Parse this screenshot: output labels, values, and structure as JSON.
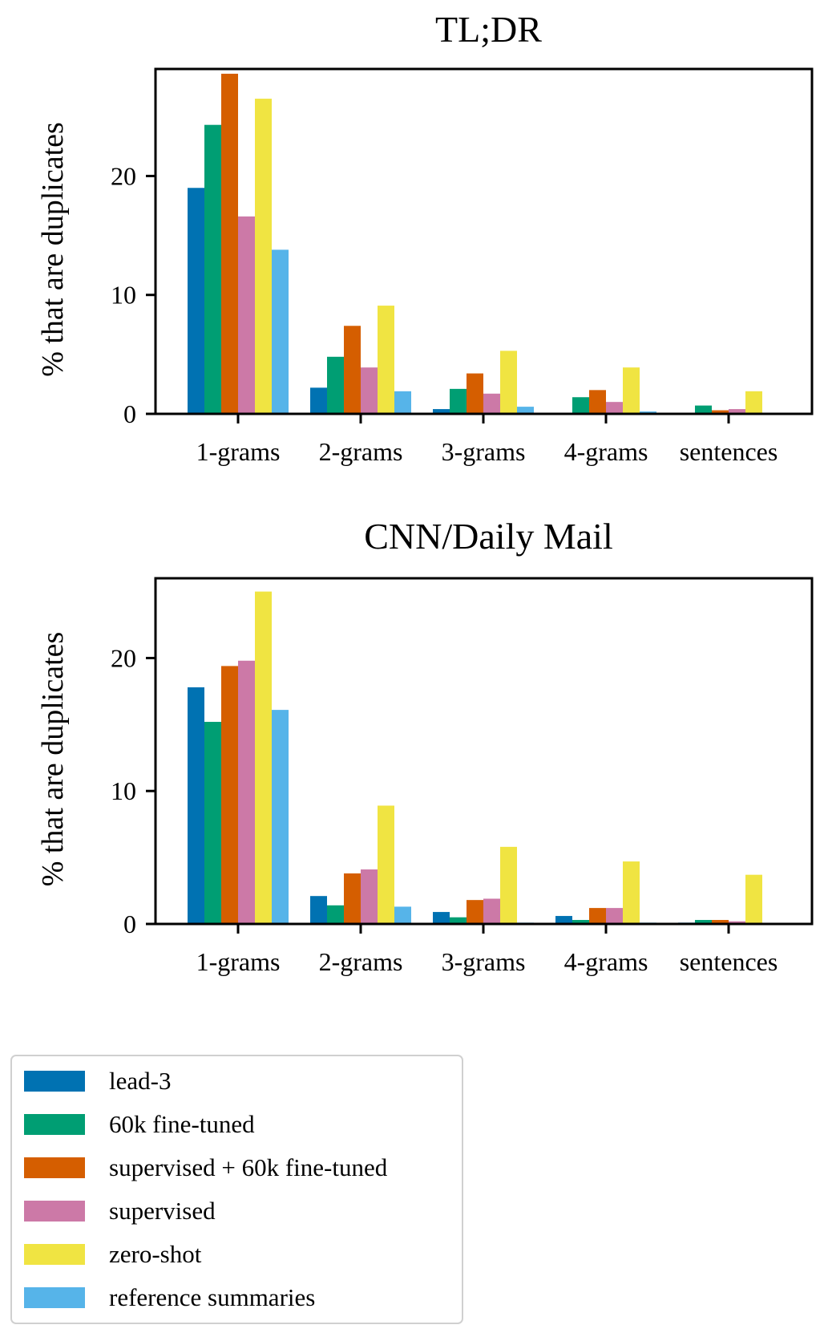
{
  "chart_data": [
    {
      "type": "bar",
      "title": "TL;DR",
      "ylabel": "% that are duplicates",
      "xlabel": "",
      "ylim": [
        0,
        29
      ],
      "yticks": [
        0,
        10,
        20
      ],
      "categories": [
        "1-grams",
        "2-grams",
        "3-grams",
        "4-grams",
        "sentences"
      ],
      "series": [
        {
          "name": "lead-3",
          "values": [
            19.0,
            2.2,
            0.4,
            0.1,
            0.1
          ]
        },
        {
          "name": "60k fine-tuned",
          "values": [
            24.3,
            4.8,
            2.1,
            1.4,
            0.7
          ]
        },
        {
          "name": "supervised + 60k fine-tuned",
          "values": [
            28.6,
            7.4,
            3.4,
            2.0,
            0.3
          ]
        },
        {
          "name": "supervised",
          "values": [
            16.6,
            3.9,
            1.7,
            1.0,
            0.4
          ]
        },
        {
          "name": "zero-shot",
          "values": [
            26.5,
            9.1,
            5.3,
            3.9,
            1.9
          ]
        },
        {
          "name": "reference summaries",
          "values": [
            13.8,
            1.9,
            0.6,
            0.2,
            0.1
          ]
        }
      ],
      "legend": "none",
      "grid": false
    },
    {
      "type": "bar",
      "title": "CNN/Daily Mail",
      "ylabel": "% that are duplicates",
      "xlabel": "",
      "ylim": [
        0,
        26
      ],
      "yticks": [
        0,
        10,
        20
      ],
      "categories": [
        "1-grams",
        "2-grams",
        "3-grams",
        "4-grams",
        "sentences"
      ],
      "series": [
        {
          "name": "lead-3",
          "values": [
            17.8,
            2.1,
            0.9,
            0.6,
            0.1
          ]
        },
        {
          "name": "60k fine-tuned",
          "values": [
            15.2,
            1.4,
            0.5,
            0.3,
            0.3
          ]
        },
        {
          "name": "supervised + 60k fine-tuned",
          "values": [
            19.4,
            3.8,
            1.8,
            1.2,
            0.3
          ]
        },
        {
          "name": "supervised",
          "values": [
            19.8,
            4.1,
            1.9,
            1.2,
            0.2
          ]
        },
        {
          "name": "zero-shot",
          "values": [
            25.0,
            8.9,
            5.8,
            4.7,
            3.7
          ]
        },
        {
          "name": "reference summaries",
          "values": [
            16.1,
            1.3,
            0.1,
            0.1,
            0.0
          ]
        }
      ],
      "legend": "none",
      "grid": false
    }
  ],
  "legend": {
    "placement": "bottom-left",
    "entries": [
      {
        "label": "lead-3",
        "color": "#0072b2"
      },
      {
        "label": "60k fine-tuned",
        "color": "#009e73"
      },
      {
        "label": "supervised + 60k fine-tuned",
        "color": "#d55e00"
      },
      {
        "label": "supervised",
        "color": "#cc79a7"
      },
      {
        "label": "zero-shot",
        "color": "#f0e442"
      },
      {
        "label": "reference summaries",
        "color": "#56b4e9"
      }
    ]
  }
}
